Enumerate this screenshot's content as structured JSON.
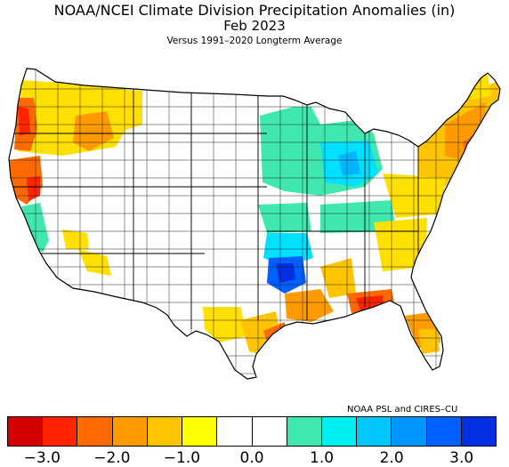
{
  "title": "NOAA/NCEI Climate Division Precipitation Anomalies (in)",
  "period": "Feb 2023",
  "subtitle": "Versus 1991–2020 Longterm Average",
  "credit": "NOAA PSL and CIRES–CU",
  "legend": {
    "colors": [
      "#d40000",
      "#ff2400",
      "#ff6a00",
      "#ff9b00",
      "#ffc400",
      "#ffff00",
      "#ffffff",
      "#ffffff",
      "#40e8b0",
      "#00f0f0",
      "#00c8ff",
      "#0096ff",
      "#0060ff",
      "#0030e0"
    ],
    "ticks": [
      {
        "label": "−3.0",
        "value": -3.0
      },
      {
        "label": "−2.0",
        "value": -2.0
      },
      {
        "label": "−1.0",
        "value": -1.0
      },
      {
        "label": "0.0",
        "value": 0.0
      },
      {
        "label": "1.0",
        "value": 1.0
      },
      {
        "label": "2.0",
        "value": 2.0
      },
      {
        "label": "3.0",
        "value": 3.0
      }
    ],
    "range": [
      -3.5,
      3.5
    ]
  }
}
